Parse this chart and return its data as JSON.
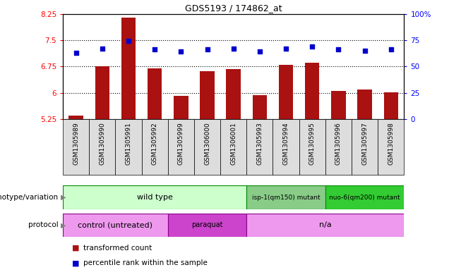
{
  "title": "GDS5193 / 174862_at",
  "samples": [
    "GSM1305989",
    "GSM1305990",
    "GSM1305991",
    "GSM1305992",
    "GSM1305999",
    "GSM1306000",
    "GSM1306001",
    "GSM1305993",
    "GSM1305994",
    "GSM1305995",
    "GSM1305996",
    "GSM1305997",
    "GSM1305998"
  ],
  "transformed_count": [
    5.35,
    6.75,
    8.15,
    6.7,
    5.92,
    6.62,
    6.67,
    5.94,
    6.8,
    6.85,
    6.05,
    6.1,
    6.02
  ],
  "percentile_rank": [
    63,
    67,
    74,
    66,
    64,
    66,
    67,
    64,
    67,
    69,
    66,
    65,
    66
  ],
  "ylim_left": [
    5.25,
    8.25
  ],
  "ylim_right": [
    0,
    100
  ],
  "yticks_left": [
    5.25,
    6.0,
    6.75,
    7.5,
    8.25
  ],
  "yticks_right": [
    0,
    25,
    50,
    75,
    100
  ],
  "ytick_labels_left": [
    "5.25",
    "6",
    "6.75",
    "7.5",
    "8.25"
  ],
  "ytick_labels_right": [
    "0",
    "25",
    "50",
    "75",
    "100%"
  ],
  "hlines": [
    6.0,
    6.75,
    7.5
  ],
  "bar_color": "#aa1111",
  "dot_color": "#0000cc",
  "plot_bg_color": "#ffffff",
  "genotype_groups": [
    {
      "label": "wild type",
      "start": 0,
      "end": 7,
      "color": "#ccffcc",
      "border": "#008800"
    },
    {
      "label": "isp-1(qm150) mutant",
      "start": 7,
      "end": 10,
      "color": "#88cc88",
      "border": "#008800"
    },
    {
      "label": "nuo-6(qm200) mutant",
      "start": 10,
      "end": 13,
      "color": "#33cc33",
      "border": "#008800"
    }
  ],
  "protocol_groups": [
    {
      "label": "control (untreated)",
      "start": 0,
      "end": 4,
      "color": "#ee99ee",
      "border": "#880088"
    },
    {
      "label": "paraquat",
      "start": 4,
      "end": 7,
      "color": "#cc44cc",
      "border": "#880088"
    },
    {
      "label": "n/a",
      "start": 7,
      "end": 13,
      "color": "#ee99ee",
      "border": "#880088"
    }
  ],
  "genotype_label": "genotype/variation",
  "protocol_label": "protocol",
  "legend_items": [
    {
      "color": "#aa1111",
      "label": "transformed count"
    },
    {
      "color": "#0000cc",
      "label": "percentile rank within the sample"
    }
  ],
  "xtick_bg": "#dddddd",
  "fig_bg": "#ffffff"
}
